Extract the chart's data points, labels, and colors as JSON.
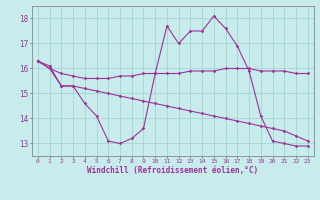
{
  "xlabel": "Windchill (Refroidissement éolien,°C)",
  "xlim": [
    -0.5,
    23.5
  ],
  "ylim": [
    12.5,
    18.5
  ],
  "yticks": [
    13,
    14,
    15,
    16,
    17,
    18
  ],
  "xticks": [
    0,
    1,
    2,
    3,
    4,
    5,
    6,
    7,
    8,
    9,
    10,
    11,
    12,
    13,
    14,
    15,
    16,
    17,
    18,
    19,
    20,
    21,
    22,
    23
  ],
  "background_color": "#c8ecec",
  "grid_color": "#9ecece",
  "line_color": "#993399",
  "series1": [
    16.3,
    16.1,
    15.3,
    15.3,
    14.6,
    14.1,
    13.1,
    13.0,
    13.2,
    13.6,
    15.8,
    17.7,
    17.0,
    17.5,
    17.5,
    18.1,
    17.6,
    16.9,
    15.9,
    14.1,
    13.1,
    13.0,
    12.9,
    12.9
  ],
  "series2": [
    16.3,
    16.0,
    15.8,
    15.7,
    15.6,
    15.6,
    15.6,
    15.7,
    15.7,
    15.8,
    15.8,
    15.8,
    15.8,
    15.9,
    15.9,
    15.9,
    16.0,
    16.0,
    16.0,
    15.9,
    15.9,
    15.9,
    15.8,
    15.8
  ],
  "series3": [
    16.3,
    16.0,
    15.3,
    15.3,
    15.2,
    15.1,
    15.0,
    14.9,
    14.8,
    14.7,
    14.6,
    14.5,
    14.4,
    14.3,
    14.2,
    14.1,
    14.0,
    13.9,
    13.8,
    13.7,
    13.6,
    13.5,
    13.3,
    13.1
  ]
}
